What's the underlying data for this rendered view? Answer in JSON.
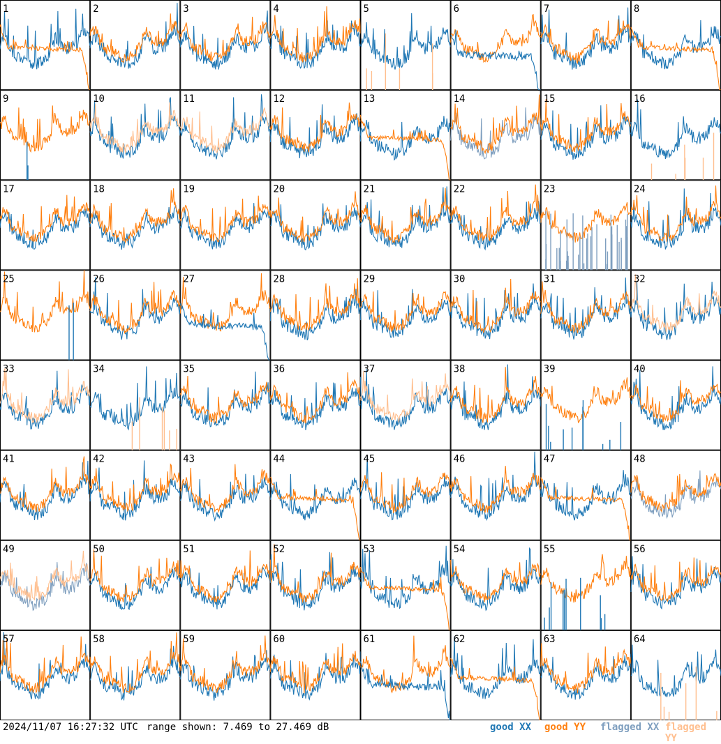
{
  "chart_data": {
    "type": "line",
    "xlabel": "",
    "ylabel": "",
    "grid_rows": 8,
    "grid_cols": 8,
    "panel_labels": [
      "1",
      "2",
      "3",
      "4",
      "5",
      "6",
      "7",
      "8",
      "9",
      "10",
      "11",
      "12",
      "13",
      "14",
      "15",
      "16",
      "17",
      "18",
      "19",
      "20",
      "21",
      "22",
      "23",
      "24",
      "25",
      "26",
      "27",
      "28",
      "29",
      "30",
      "31",
      "32",
      "33",
      "34",
      "35",
      "36",
      "37",
      "38",
      "39",
      "40",
      "41",
      "42",
      "43",
      "44",
      "45",
      "46",
      "47",
      "48",
      "49",
      "50",
      "51",
      "52",
      "53",
      "54",
      "55",
      "56",
      "57",
      "58",
      "59",
      "60",
      "61",
      "62",
      "63",
      "64"
    ],
    "y_range_db": [
      7.469,
      27.469
    ],
    "legend_placement": "bottom-right",
    "series": [
      {
        "name": "good XX",
        "color": "#1f77b4"
      },
      {
        "name": "good YY",
        "color": "#ff7f0e"
      },
      {
        "name": "flagged XX",
        "color": "#7f9fbf"
      },
      {
        "name": "flagged YY",
        "color": "#ffbf8f"
      }
    ]
  },
  "footer": {
    "timestamp": "2024/11/07 16:27:32 UTC",
    "range_text": "range shown: 7.469 to 27.469 dB"
  },
  "legend": [
    {
      "label": "good XX",
      "color": "#1f77b4"
    },
    {
      "label": "good YY",
      "color": "#ff7f0e"
    },
    {
      "label": "flagged XX",
      "color": "#7f9fbf"
    },
    {
      "label": "flagged YY",
      "color": "#ffbf8f"
    }
  ]
}
